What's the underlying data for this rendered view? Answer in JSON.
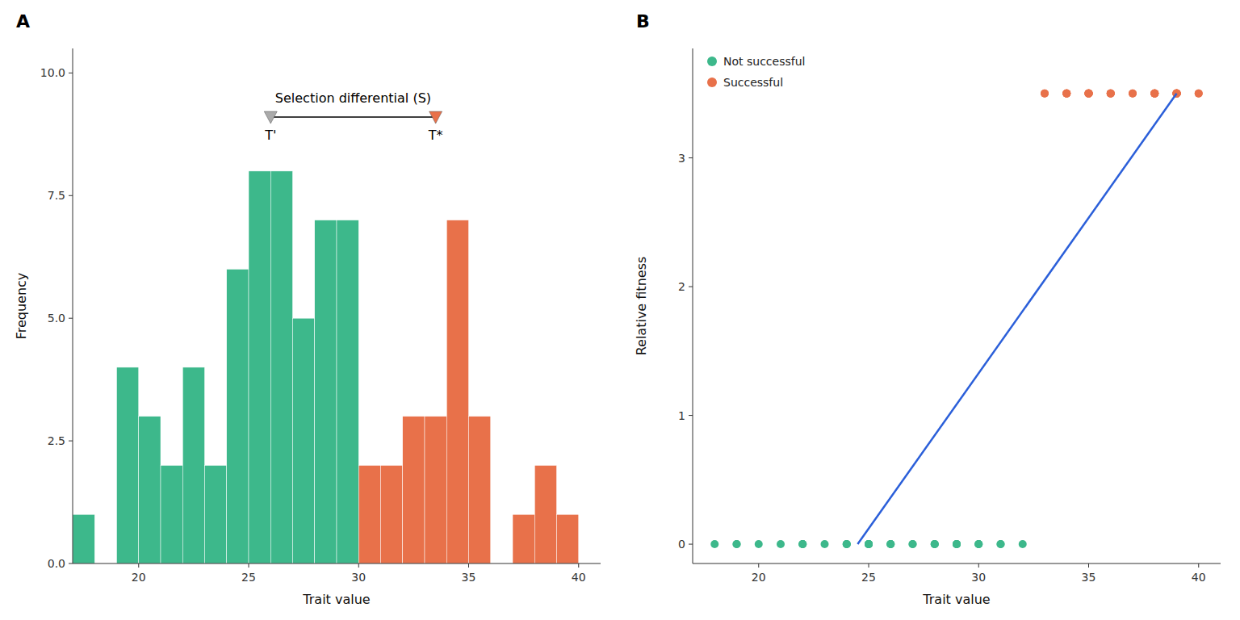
{
  "chart_data": [
    {
      "type": "histogram",
      "title": "A",
      "x_label": "Trait value",
      "y_label": "Frequency",
      "xlim": [
        17,
        41
      ],
      "ylim": [
        0,
        10.5
      ],
      "xticks": [
        20,
        25,
        30,
        35,
        40
      ],
      "yticks": [
        {
          "value": 0,
          "label": "0.0"
        },
        2.5,
        {
          "value": 5,
          "label": "5.0"
        },
        7.5,
        {
          "value": 10,
          "label": "10.0"
        }
      ],
      "grid": false,
      "series": [
        {
          "color": "#3db88b",
          "bins": [
            17,
            18,
            19,
            20,
            21,
            22,
            23,
            24,
            25,
            26,
            27,
            28,
            29,
            30,
            31
          ],
          "values": [
            1,
            0,
            4,
            3,
            2,
            4,
            2,
            6,
            8,
            8,
            5,
            7,
            7,
            0
          ]
        },
        {
          "color": "#e8714a",
          "bins": [
            30,
            31,
            32,
            33,
            34,
            35,
            36,
            37,
            38,
            39,
            40,
            41
          ],
          "values": [
            2,
            2,
            3,
            3,
            7,
            3,
            0,
            1,
            2,
            1,
            0
          ]
        }
      ],
      "annotation": "Selection differential (S)",
      "markers": [
        {
          "label": "T'",
          "x": 26.0,
          "y": 9.1,
          "color": "#aaaaaa",
          "marker": "triangle-down"
        },
        {
          "label": "T*",
          "x": 33.5,
          "y": 9.1,
          "color": "#e8714a",
          "marker": "triangle-down"
        }
      ]
    },
    {
      "type": "scatter",
      "title": "B",
      "x_label": "Trait value",
      "y_label": "Relative fitness",
      "xlim": [
        17,
        41
      ],
      "ylim": [
        -0.15,
        3.85
      ],
      "xticks": [
        20,
        25,
        30,
        35,
        40
      ],
      "yticks": [
        0,
        1,
        2,
        3
      ],
      "grid": false,
      "legend": "upper left",
      "series": [
        {
          "name": "Not successful",
          "color": "#3db88b",
          "x": [
            18,
            19,
            19,
            20,
            21,
            22,
            22,
            22,
            23,
            24,
            24,
            24,
            25,
            25,
            25,
            25,
            25,
            26,
            26,
            26,
            27,
            27,
            28,
            28,
            28,
            29,
            29,
            29,
            29,
            30,
            30,
            30,
            31,
            31,
            32
          ],
          "values": [
            0,
            0,
            0,
            0,
            0,
            0,
            0,
            0,
            0,
            0,
            0,
            0,
            0,
            0,
            0,
            0,
            0,
            0,
            0,
            0,
            0,
            0,
            0,
            0,
            0,
            0,
            0,
            0,
            0,
            0,
            0,
            0,
            0,
            0,
            0
          ]
        },
        {
          "name": "Successful",
          "color": "#e8714a",
          "x": [
            33,
            33,
            34,
            34,
            34,
            34,
            34,
            35,
            35,
            35,
            35,
            35,
            35,
            35,
            36,
            36,
            36,
            36,
            37,
            37,
            38,
            38,
            38,
            38,
            38,
            38,
            39,
            39,
            39,
            39,
            39,
            39,
            39,
            39,
            39,
            40,
            40
          ],
          "values": [
            3.5,
            3.5,
            3.5,
            3.5,
            3.5,
            3.5,
            3.5,
            3.5,
            3.5,
            3.5,
            3.5,
            3.5,
            3.5,
            3.5,
            3.5,
            3.5,
            3.5,
            3.5,
            3.5,
            3.5,
            3.5,
            3.5,
            3.5,
            3.5,
            3.5,
            3.5,
            3.5,
            3.5,
            3.5,
            3.5,
            3.5,
            3.5,
            3.5,
            3.5,
            3.5,
            3.5,
            3.5
          ]
        },
        {
          "type": "line",
          "color": "#2b5fd9",
          "x": [
            24.5,
            39.0
          ],
          "values": [
            0.0,
            3.5
          ]
        }
      ]
    }
  ]
}
